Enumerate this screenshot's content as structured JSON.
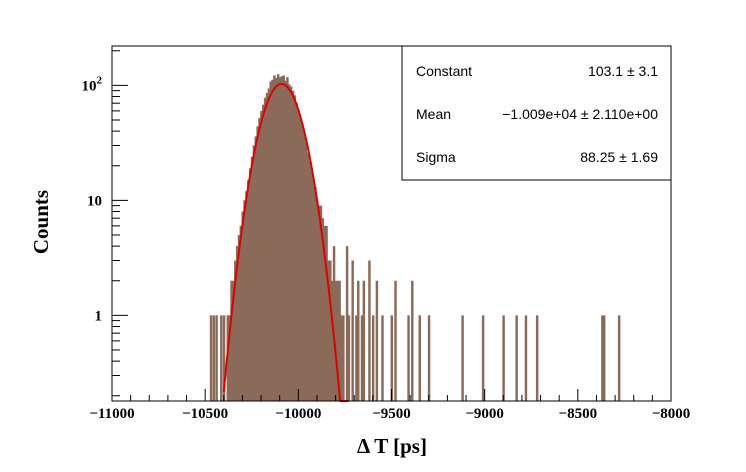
{
  "chart_data": {
    "type": "histogram",
    "xlabel": "Δ T [ps]",
    "ylabel": "Counts",
    "xlim": [
      -11000,
      -8000
    ],
    "ylim": [
      0.18,
      220
    ],
    "y_scale": "log",
    "fill_color": "#8a6a58",
    "fit_color": "#e00000",
    "x_ticks": [
      {
        "value": -11000,
        "label": "−11000"
      },
      {
        "value": -10500,
        "label": "−10500"
      },
      {
        "value": -10000,
        "label": "−10000"
      },
      {
        "value": -9500,
        "label": "−9500"
      },
      {
        "value": -9000,
        "label": "−9000"
      },
      {
        "value": -8500,
        "label": "−8500"
      },
      {
        "value": -8000,
        "label": "−8000"
      }
    ],
    "y_ticks": [
      {
        "value": 1,
        "base": "1",
        "exp": ""
      },
      {
        "value": 10,
        "base": "10",
        "exp": ""
      },
      {
        "value": 100,
        "base": "10",
        "exp": "2"
      }
    ],
    "bins": [
      {
        "x": -10470,
        "count": 1
      },
      {
        "x": -10455,
        "count": 1
      },
      {
        "x": -10440,
        "count": 1
      },
      {
        "x": -10415,
        "count": 1
      },
      {
        "x": -10400,
        "count": 1
      },
      {
        "x": -10380,
        "count": 1
      },
      {
        "x": -10370,
        "count": 1
      },
      {
        "x": -10360,
        "count": 2
      },
      {
        "x": -10350,
        "count": 2
      },
      {
        "x": -10340,
        "count": 3
      },
      {
        "x": -10330,
        "count": 4
      },
      {
        "x": -10320,
        "count": 5
      },
      {
        "x": -10310,
        "count": 6
      },
      {
        "x": -10300,
        "count": 8
      },
      {
        "x": -10290,
        "count": 10
      },
      {
        "x": -10280,
        "count": 12
      },
      {
        "x": -10270,
        "count": 15
      },
      {
        "x": -10260,
        "count": 19
      },
      {
        "x": -10250,
        "count": 24
      },
      {
        "x": -10240,
        "count": 30
      },
      {
        "x": -10230,
        "count": 36
      },
      {
        "x": -10220,
        "count": 44
      },
      {
        "x": -10210,
        "count": 52
      },
      {
        "x": -10200,
        "count": 60
      },
      {
        "x": -10190,
        "count": 68
      },
      {
        "x": -10180,
        "count": 78
      },
      {
        "x": -10170,
        "count": 86
      },
      {
        "x": -10160,
        "count": 94
      },
      {
        "x": -10150,
        "count": 108
      },
      {
        "x": -10140,
        "count": 112
      },
      {
        "x": -10130,
        "count": 122
      },
      {
        "x": -10120,
        "count": 116
      },
      {
        "x": -10110,
        "count": 125
      },
      {
        "x": -10100,
        "count": 118
      },
      {
        "x": -10090,
        "count": 120
      },
      {
        "x": -10080,
        "count": 122
      },
      {
        "x": -10070,
        "count": 110
      },
      {
        "x": -10060,
        "count": 118
      },
      {
        "x": -10050,
        "count": 102
      },
      {
        "x": -10040,
        "count": 98
      },
      {
        "x": -10030,
        "count": 90
      },
      {
        "x": -10020,
        "count": 82
      },
      {
        "x": -10010,
        "count": 70
      },
      {
        "x": -10000,
        "count": 60
      },
      {
        "x": -9990,
        "count": 52
      },
      {
        "x": -9980,
        "count": 45
      },
      {
        "x": -9970,
        "count": 38
      },
      {
        "x": -9960,
        "count": 32
      },
      {
        "x": -9950,
        "count": 26
      },
      {
        "x": -9940,
        "count": 22
      },
      {
        "x": -9930,
        "count": 18
      },
      {
        "x": -9920,
        "count": 15
      },
      {
        "x": -9910,
        "count": 13
      },
      {
        "x": -9900,
        "count": 10
      },
      {
        "x": -9890,
        "count": 9
      },
      {
        "x": -9880,
        "count": 9
      },
      {
        "x": -9870,
        "count": 7
      },
      {
        "x": -9860,
        "count": 6
      },
      {
        "x": -9850,
        "count": 6
      },
      {
        "x": -9840,
        "count": 3
      },
      {
        "x": -9830,
        "count": 3
      },
      {
        "x": -9820,
        "count": 2
      },
      {
        "x": -9810,
        "count": 4
      },
      {
        "x": -9800,
        "count": 2
      },
      {
        "x": -9790,
        "count": 2
      },
      {
        "x": -9780,
        "count": 2
      },
      {
        "x": -9770,
        "count": 1
      },
      {
        "x": -9760,
        "count": 1
      },
      {
        "x": -9740,
        "count": 4
      },
      {
        "x": -9730,
        "count": 1
      },
      {
        "x": -9710,
        "count": 3
      },
      {
        "x": -9690,
        "count": 1
      },
      {
        "x": -9680,
        "count": 2
      },
      {
        "x": -9660,
        "count": 1
      },
      {
        "x": -9650,
        "count": 2
      },
      {
        "x": -9620,
        "count": 3
      },
      {
        "x": -9600,
        "count": 1
      },
      {
        "x": -9580,
        "count": 2
      },
      {
        "x": -9550,
        "count": 1
      },
      {
        "x": -9500,
        "count": 1
      },
      {
        "x": -9480,
        "count": 2
      },
      {
        "x": -9410,
        "count": 1
      },
      {
        "x": -9390,
        "count": 2
      },
      {
        "x": -9350,
        "count": 1
      },
      {
        "x": -9300,
        "count": 1
      },
      {
        "x": -9120,
        "count": 1
      },
      {
        "x": -9010,
        "count": 1
      },
      {
        "x": -8900,
        "count": 1
      },
      {
        "x": -8830,
        "count": 1
      },
      {
        "x": -8780,
        "count": 1
      },
      {
        "x": -8720,
        "count": 1
      },
      {
        "x": -8370,
        "count": 1
      },
      {
        "x": -8360,
        "count": 1
      },
      {
        "x": -8280,
        "count": 1
      }
    ],
    "bin_width": 10,
    "fit": {
      "type": "gaussian",
      "constant": 103.1,
      "mean": -10090,
      "sigma": 88.25,
      "x_range": [
        -10400,
        -9730
      ]
    },
    "stats": [
      {
        "name": "Constant",
        "value": "103.1 ± 3.1"
      },
      {
        "name": "Mean",
        "value": "−1.009e+04 ± 2.110e+00"
      },
      {
        "name": "Sigma",
        "value": "88.25 ± 1.69"
      }
    ]
  }
}
